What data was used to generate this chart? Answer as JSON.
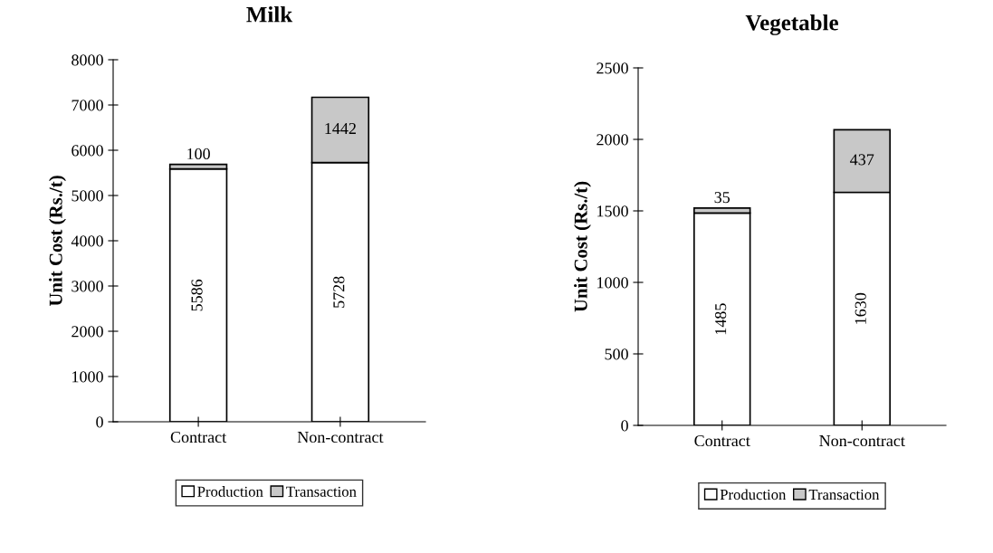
{
  "chart_data": [
    {
      "type": "bar",
      "title": "Milk",
      "ylabel": "Unit Cost (Rs./t)",
      "categories": [
        "Contract",
        "Non-contract"
      ],
      "stacked": true,
      "data_labels": true,
      "grid": false,
      "legend": "bottom",
      "ylim": [
        0,
        8000
      ],
      "yticks": [
        0,
        1000,
        2000,
        3000,
        4000,
        5000,
        6000,
        7000,
        8000
      ],
      "series": [
        {
          "name": "Production",
          "color": "#ffffff",
          "values": [
            5586,
            5728
          ]
        },
        {
          "name": "Transaction",
          "color": "#c8c8c8",
          "values": [
            100,
            1442
          ]
        }
      ]
    },
    {
      "type": "bar",
      "title": "Vegetable",
      "ylabel": "Unit Cost (Rs./t)",
      "categories": [
        "Contract",
        "Non-contract"
      ],
      "stacked": true,
      "data_labels": true,
      "grid": false,
      "legend": "bottom",
      "ylim": [
        0,
        2500
      ],
      "yticks": [
        0,
        500,
        1000,
        1500,
        2000,
        2500
      ],
      "series": [
        {
          "name": "Production",
          "color": "#ffffff",
          "values": [
            1485,
            1630
          ]
        },
        {
          "name": "Transaction",
          "color": "#c8c8c8",
          "values": [
            35,
            437
          ]
        }
      ]
    }
  ]
}
